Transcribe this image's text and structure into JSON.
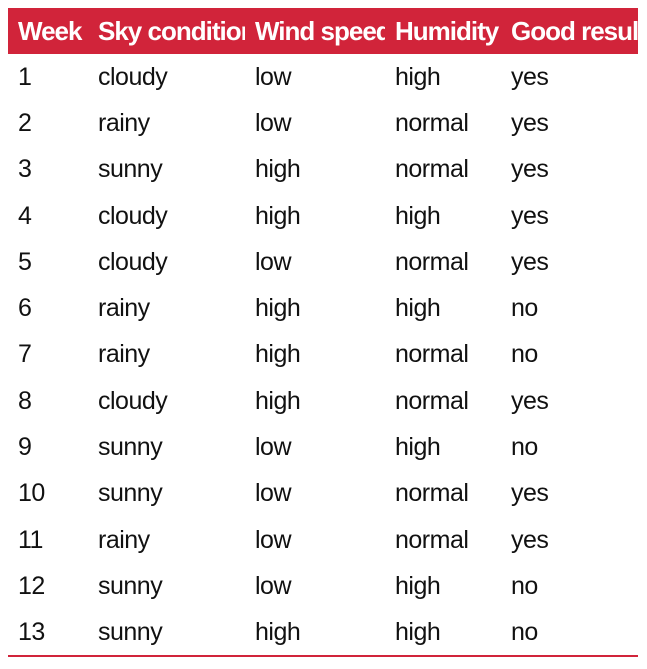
{
  "table": {
    "columns": [
      "Week",
      "Sky condition",
      "Wind speed",
      "Humidity",
      "Good result"
    ],
    "rows": [
      [
        "1",
        "cloudy",
        "low",
        "high",
        "yes"
      ],
      [
        "2",
        "rainy",
        "low",
        "normal",
        "yes"
      ],
      [
        "3",
        "sunny",
        "high",
        "normal",
        "yes"
      ],
      [
        "4",
        "cloudy",
        "high",
        "high",
        "yes"
      ],
      [
        "5",
        "cloudy",
        "low",
        "normal",
        "yes"
      ],
      [
        "6",
        "rainy",
        "high",
        "high",
        "no"
      ],
      [
        "7",
        "rainy",
        "high",
        "normal",
        "no"
      ],
      [
        "8",
        "cloudy",
        "high",
        "normal",
        "yes"
      ],
      [
        "9",
        "sunny",
        "low",
        "high",
        "no"
      ],
      [
        "10",
        "sunny",
        "low",
        "normal",
        "yes"
      ],
      [
        "11",
        "rainy",
        "low",
        "normal",
        "yes"
      ],
      [
        "12",
        "sunny",
        "low",
        "high",
        "no"
      ],
      [
        "13",
        "sunny",
        "high",
        "high",
        "no"
      ]
    ]
  },
  "colors": {
    "header_background": "#d1243a",
    "header_text": "#ffffff",
    "body_text": "#111111",
    "rule": "#d1243a"
  }
}
